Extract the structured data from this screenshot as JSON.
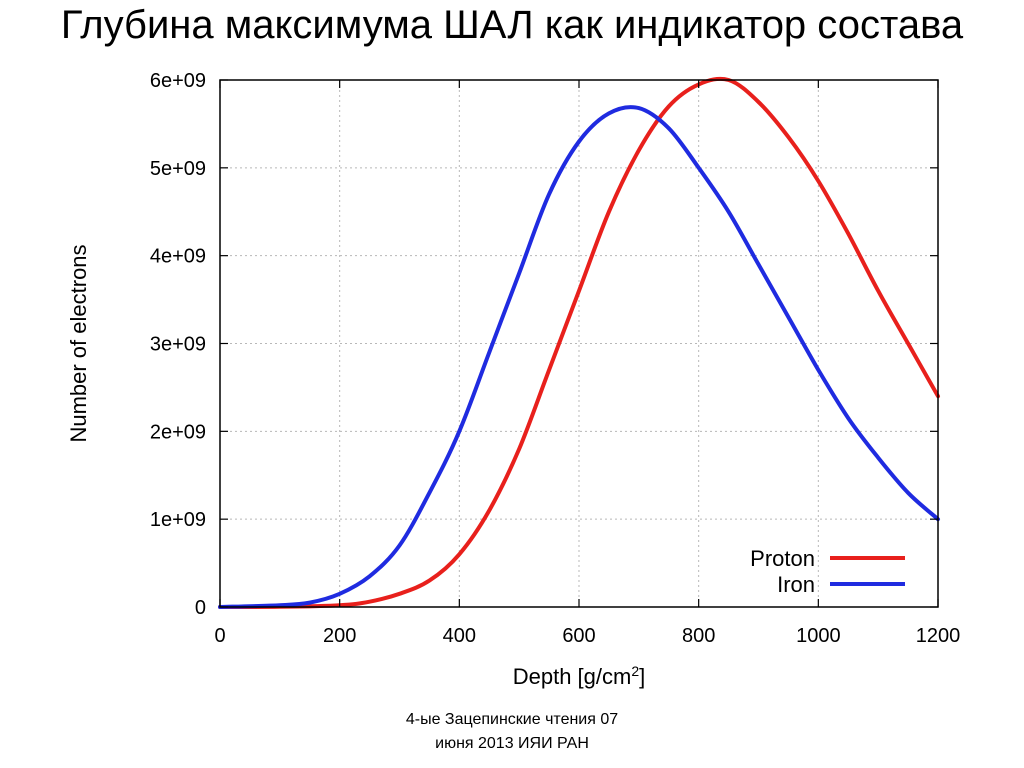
{
  "slide": {
    "title": "Глубина максимума ШАЛ как индикатор состава",
    "footer_line1": "4-ые Зацепинские чтения 07",
    "footer_line2": "июня 2013 ИЯИ РАН"
  },
  "chart_data": {
    "type": "line",
    "title": "",
    "xlabel_base": "Depth [g/cm",
    "xlabel_sup": "2",
    "xlabel_end": "]",
    "ylabel": "Number of electrons",
    "xlim": [
      0,
      1200
    ],
    "ylim": [
      0,
      6000000000
    ],
    "x_ticks": [
      0,
      200,
      400,
      600,
      800,
      1000,
      1200
    ],
    "x_tick_labels": [
      "0",
      "200",
      "400",
      "600",
      "800",
      "1000",
      "1200"
    ],
    "y_ticks": [
      0,
      1000000000,
      2000000000,
      3000000000,
      4000000000,
      5000000000,
      6000000000
    ],
    "y_tick_labels": [
      "0",
      "1e+09",
      "2e+09",
      "3e+09",
      "4e+09",
      "5e+09",
      "6e+09"
    ],
    "grid": true,
    "legend_position": "bottom-right",
    "series": [
      {
        "name": "Proton",
        "color": "#e8201c",
        "x": [
          0,
          100,
          200,
          250,
          300,
          350,
          400,
          450,
          500,
          550,
          600,
          650,
          700,
          750,
          800,
          850,
          900,
          950,
          1000,
          1050,
          1100,
          1150,
          1200
        ],
        "y": [
          0,
          2000000,
          20000000,
          60000000,
          150000000,
          300000000,
          600000000,
          1100000000,
          1800000000,
          2700000000,
          3600000000,
          4500000000,
          5200000000,
          5700000000,
          5950000000,
          6000000000,
          5750000000,
          5350000000,
          4850000000,
          4250000000,
          3600000000,
          3000000000,
          2400000000
        ]
      },
      {
        "name": "Iron",
        "color": "#1f2be0",
        "x": [
          0,
          100,
          150,
          200,
          250,
          300,
          350,
          400,
          450,
          500,
          550,
          600,
          650,
          700,
          750,
          800,
          850,
          900,
          950,
          1000,
          1050,
          1100,
          1150,
          1200
        ],
        "y": [
          0,
          20000000,
          50000000,
          150000000,
          350000000,
          700000000,
          1300000000,
          2000000000,
          2900000000,
          3800000000,
          4700000000,
          5300000000,
          5620000000,
          5680000000,
          5450000000,
          5000000000,
          4500000000,
          3900000000,
          3300000000,
          2700000000,
          2150000000,
          1700000000,
          1300000000,
          1000000000
        ]
      }
    ]
  }
}
